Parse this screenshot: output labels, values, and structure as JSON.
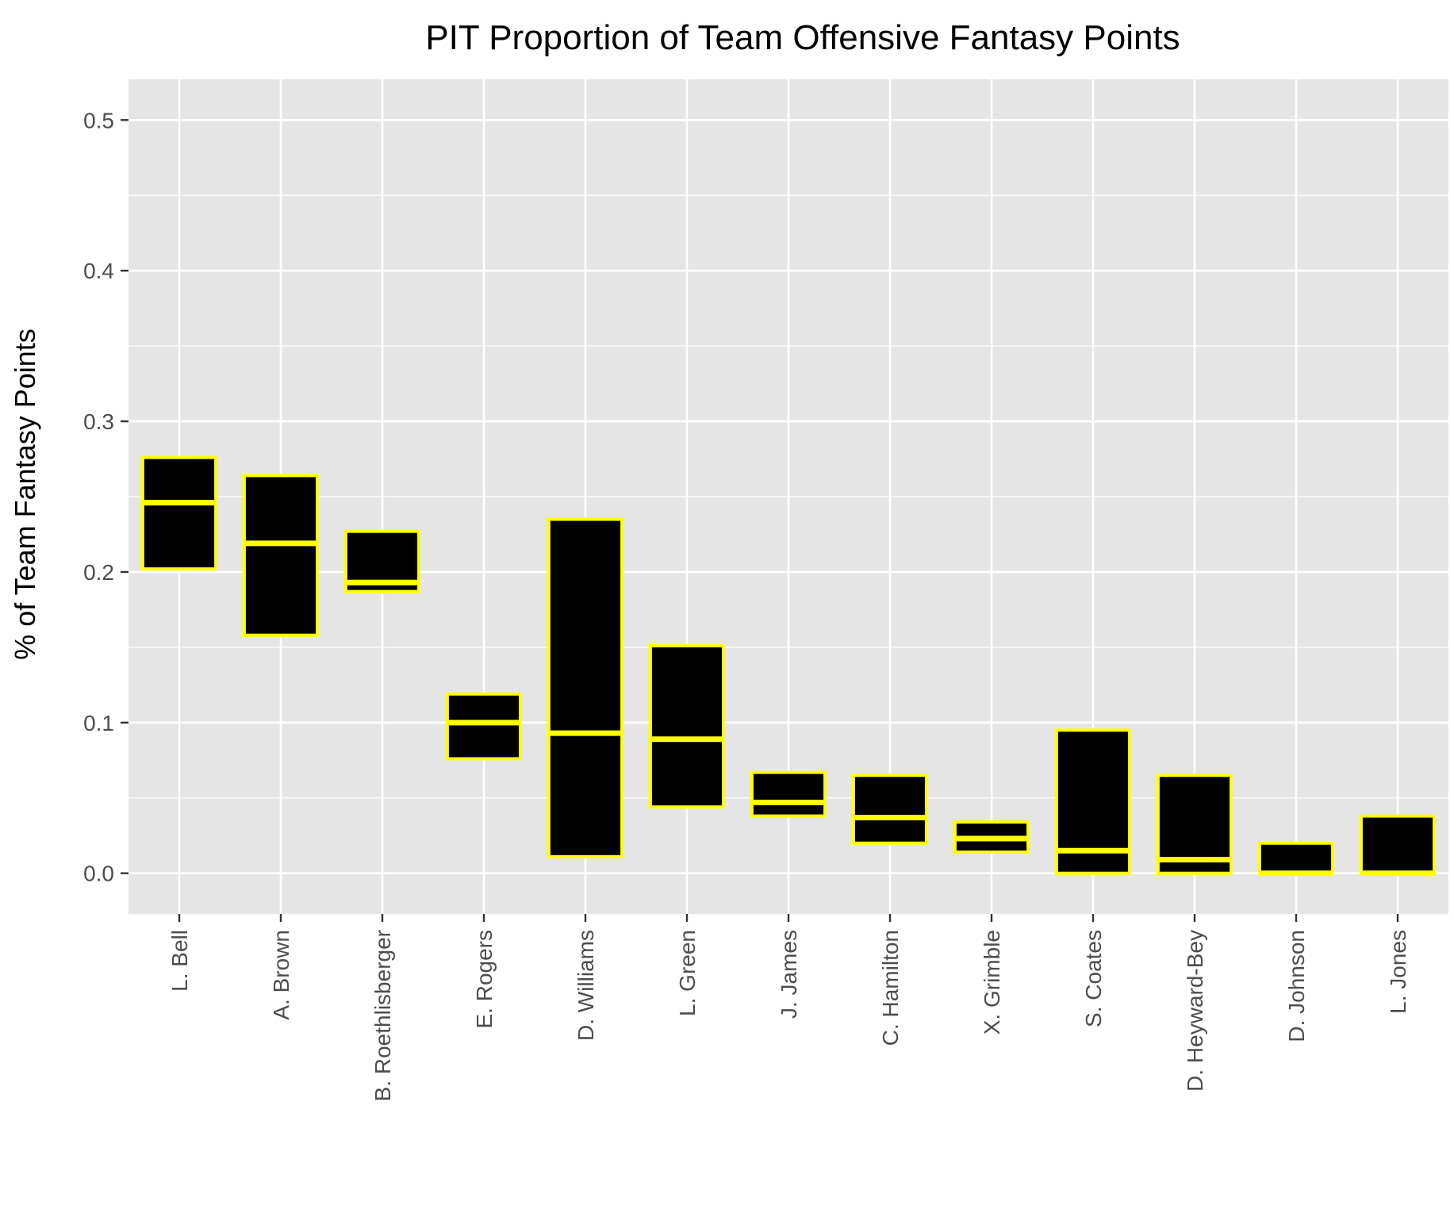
{
  "chart_data": {
    "type": "boxplot",
    "title": "PIT Proportion of Team Offensive Fantasy Points",
    "xlabel": "",
    "ylabel": "% of Team Fantasy Points",
    "ylim": [
      -0.027,
      0.527
    ],
    "y_ticks": [
      0.0,
      0.1,
      0.2,
      0.3,
      0.4,
      0.5
    ],
    "y_tick_labels": [
      "0.0",
      "0.1",
      "0.2",
      "0.3",
      "0.4",
      "0.5"
    ],
    "grid": true,
    "legend": "none",
    "colors": {
      "panel_background": "#e5e5e5",
      "grid": "#ffffff",
      "box_fill": "#000000",
      "box_outline": "#ffff00",
      "median_line": "#ffff00"
    },
    "categories": [
      "L. Bell",
      "A. Brown",
      "B. Roethlisberger",
      "E. Rogers",
      "D. Williams",
      "L. Green",
      "J. James",
      "C. Hamilton",
      "X. Grimble",
      "S. Coates",
      "D. Heyward-Bey",
      "D. Johnson",
      "L. Jones"
    ],
    "boxes": [
      {
        "lower": 0.202,
        "median": 0.246,
        "upper": 0.276
      },
      {
        "lower": 0.158,
        "median": 0.219,
        "upper": 0.264
      },
      {
        "lower": 0.187,
        "median": 0.193,
        "upper": 0.227
      },
      {
        "lower": 0.076,
        "median": 0.1,
        "upper": 0.119
      },
      {
        "lower": 0.011,
        "median": 0.093,
        "upper": 0.235
      },
      {
        "lower": 0.044,
        "median": 0.089,
        "upper": 0.151
      },
      {
        "lower": 0.038,
        "median": 0.047,
        "upper": 0.067
      },
      {
        "lower": 0.02,
        "median": 0.037,
        "upper": 0.065
      },
      {
        "lower": 0.014,
        "median": 0.023,
        "upper": 0.034
      },
      {
        "lower": 0.0,
        "median": 0.015,
        "upper": 0.095
      },
      {
        "lower": 0.0,
        "median": 0.009,
        "upper": 0.065
      },
      {
        "lower": 0.0,
        "median": 0.0,
        "upper": 0.02
      },
      {
        "lower": 0.0,
        "median": 0.0,
        "upper": 0.038
      }
    ]
  }
}
